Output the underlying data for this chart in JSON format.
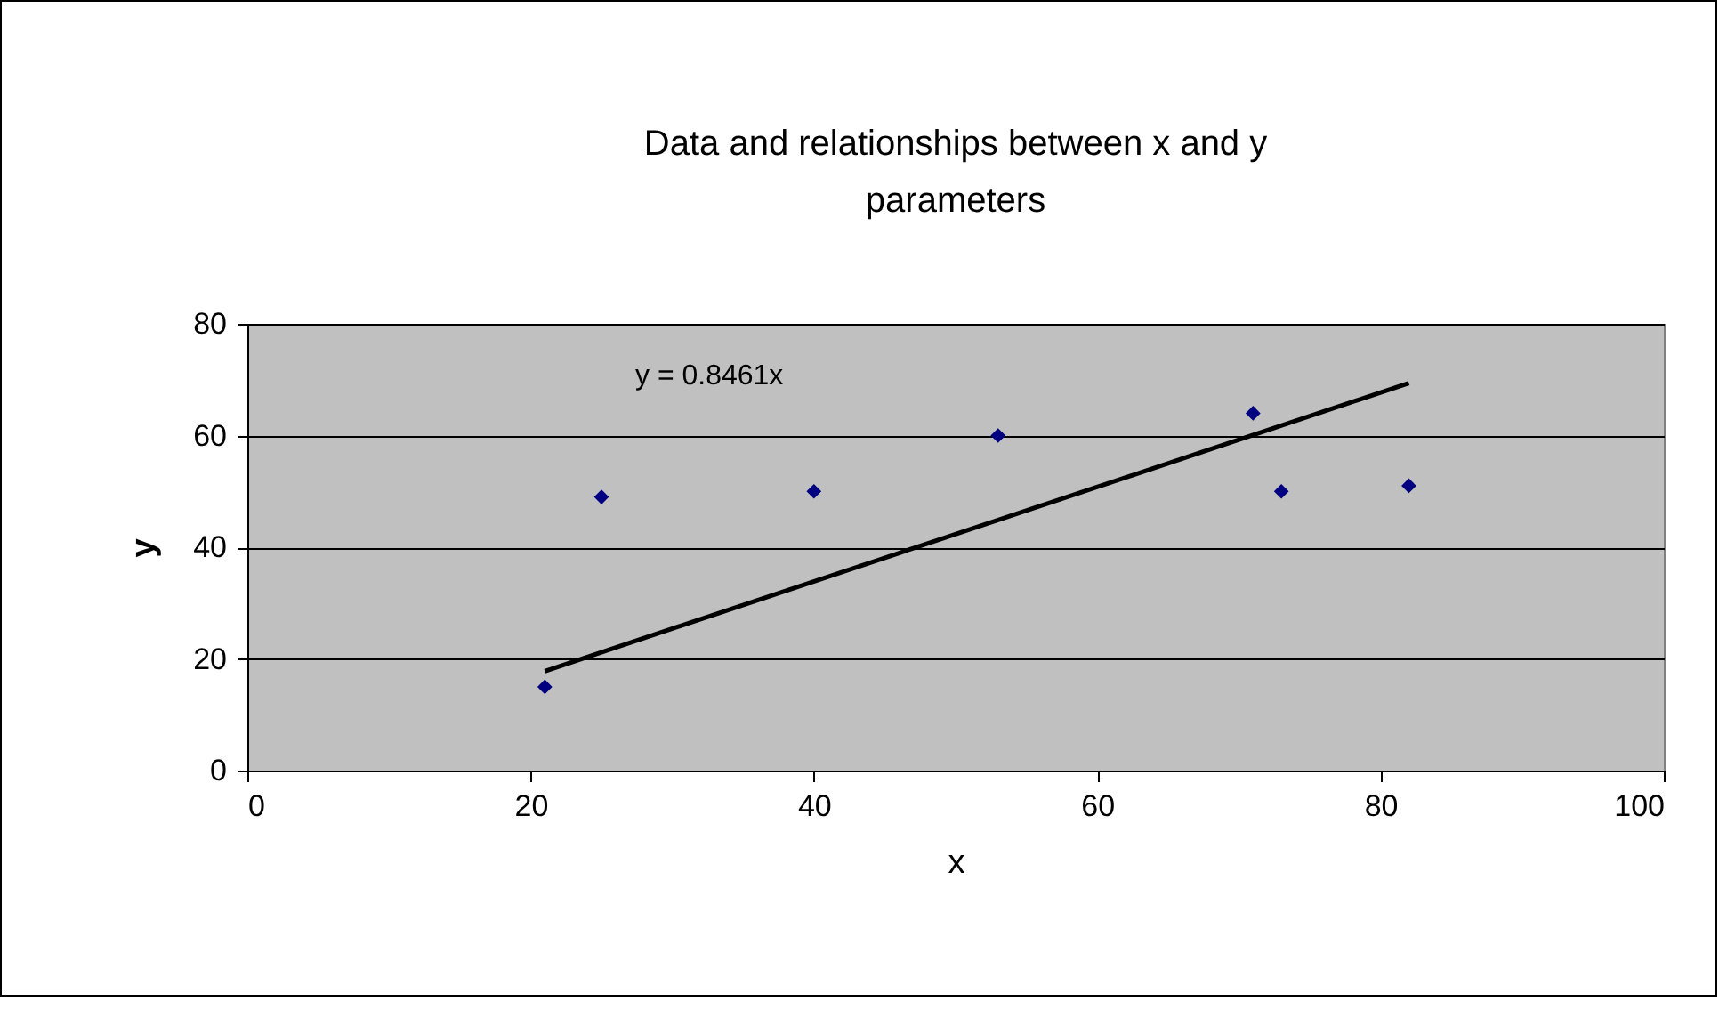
{
  "chart_data": {
    "type": "scatter",
    "title": "Data and relationships between x and y parameters",
    "xlabel": "x",
    "ylabel": "y",
    "x": [
      21,
      25,
      40,
      53,
      71,
      73,
      82
    ],
    "series": [
      {
        "color": "#000080",
        "values": [
          15,
          49,
          50,
          60,
          64,
          50,
          51
        ]
      },
      {
        "type": "line",
        "color": "#000000",
        "marker": "none",
        "x": [
          21,
          82
        ],
        "values": [
          17.8,
          69.4
        ]
      }
    ],
    "xlim": [
      0,
      100
    ],
    "xticks": [
      0,
      20,
      40,
      60,
      80,
      100
    ],
    "ylim": [
      0,
      80
    ],
    "yticks": [
      0,
      20,
      40,
      60,
      80
    ],
    "grid": "y",
    "marker": "diamond",
    "annotations": [
      "y = 0.8461x"
    ]
  }
}
